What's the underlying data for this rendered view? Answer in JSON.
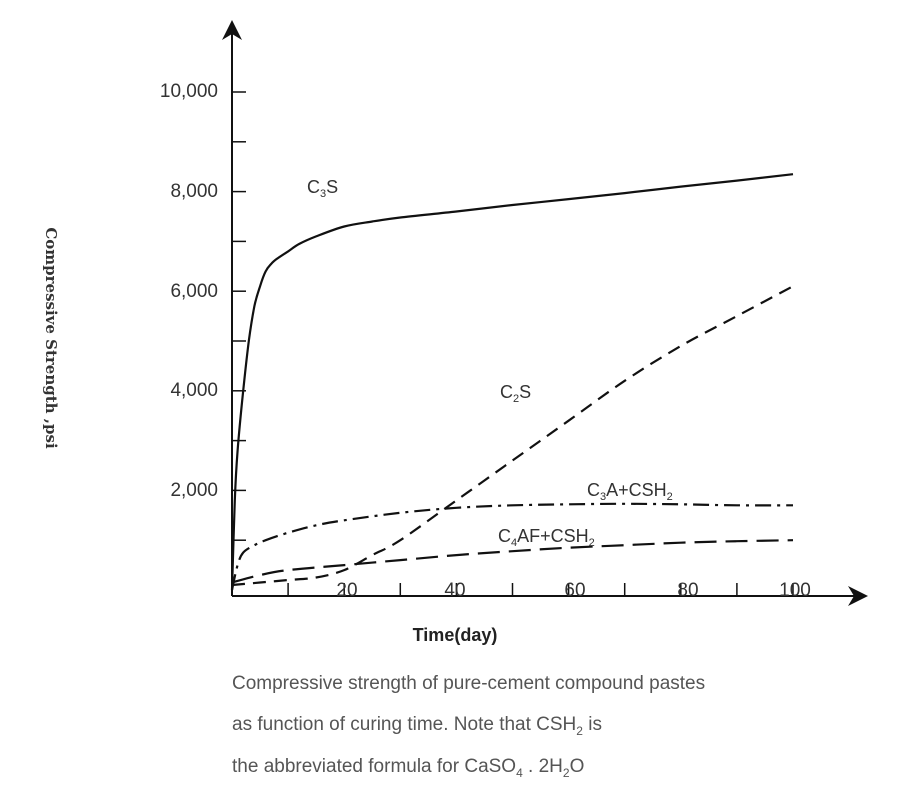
{
  "chart_data": {
    "type": "line",
    "xlabel": "Time(day)",
    "ylabel": "Compressive Strength ,psi",
    "xlim": [
      0,
      100
    ],
    "ylim": [
      0,
      10000
    ],
    "x_tick_labels": [
      "20",
      "40",
      "60",
      "80",
      "100"
    ],
    "y_tick_labels": [
      "2,000",
      "4,000",
      "6,000",
      "8,000",
      "10,000"
    ],
    "series": [
      {
        "name": "C3S",
        "label_text": "C",
        "label_sub": "3",
        "label_after": "S",
        "style": "solid",
        "x": [
          0,
          0.5,
          1,
          2,
          3,
          4,
          5,
          6,
          7,
          8,
          10,
          12,
          15,
          20,
          25,
          30,
          40,
          50,
          60,
          70,
          80,
          90,
          100
        ],
        "y": [
          0,
          1800,
          2800,
          4000,
          5000,
          5700,
          6100,
          6400,
          6550,
          6650,
          6800,
          6950,
          7100,
          7300,
          7400,
          7480,
          7600,
          7730,
          7850,
          7970,
          8100,
          8220,
          8350
        ]
      },
      {
        "name": "C2S",
        "label_text": "C",
        "label_sub": "2",
        "label_after": "S",
        "style": "dashed",
        "x": [
          0,
          5,
          10,
          15,
          20,
          25,
          30,
          40,
          50,
          60,
          70,
          80,
          90,
          100
        ],
        "y": [
          100,
          150,
          200,
          250,
          400,
          700,
          1000,
          1800,
          2600,
          3400,
          4200,
          4900,
          5500,
          6100
        ]
      },
      {
        "name": "C3A+CSH2",
        "label_text": "C",
        "label_sub": "3",
        "label_after": "A+CSH",
        "label_sub2": "2",
        "style": "dashdot",
        "x": [
          0,
          1,
          2,
          4,
          6,
          10,
          15,
          20,
          30,
          40,
          50,
          60,
          70,
          80,
          90,
          100
        ],
        "y": [
          0,
          500,
          750,
          900,
          1000,
          1150,
          1300,
          1400,
          1550,
          1650,
          1700,
          1720,
          1730,
          1720,
          1700,
          1700
        ]
      },
      {
        "name": "C4AF+CSH2",
        "label_text": "C",
        "label_sub": "4",
        "label_after": "AF+CSH",
        "label_sub2": "2",
        "style": "longdash",
        "x": [
          0,
          5,
          10,
          20,
          30,
          40,
          50,
          60,
          70,
          80,
          90,
          100
        ],
        "y": [
          150,
          300,
          400,
          500,
          600,
          700,
          780,
          850,
          900,
          950,
          980,
          1000
        ]
      }
    ]
  },
  "caption": {
    "line1": "Compressive strength of pure-cement compound pastes",
    "line2_a": "as function of curing time. Note that CSH",
    "line2_sub": "2",
    "line2_b": " is",
    "line3_a": "the abbreviated formula for CaSO",
    "line3_sub": "4",
    "line3_b": " . 2H",
    "line3_sub2": "2",
    "line3_c": "O"
  }
}
